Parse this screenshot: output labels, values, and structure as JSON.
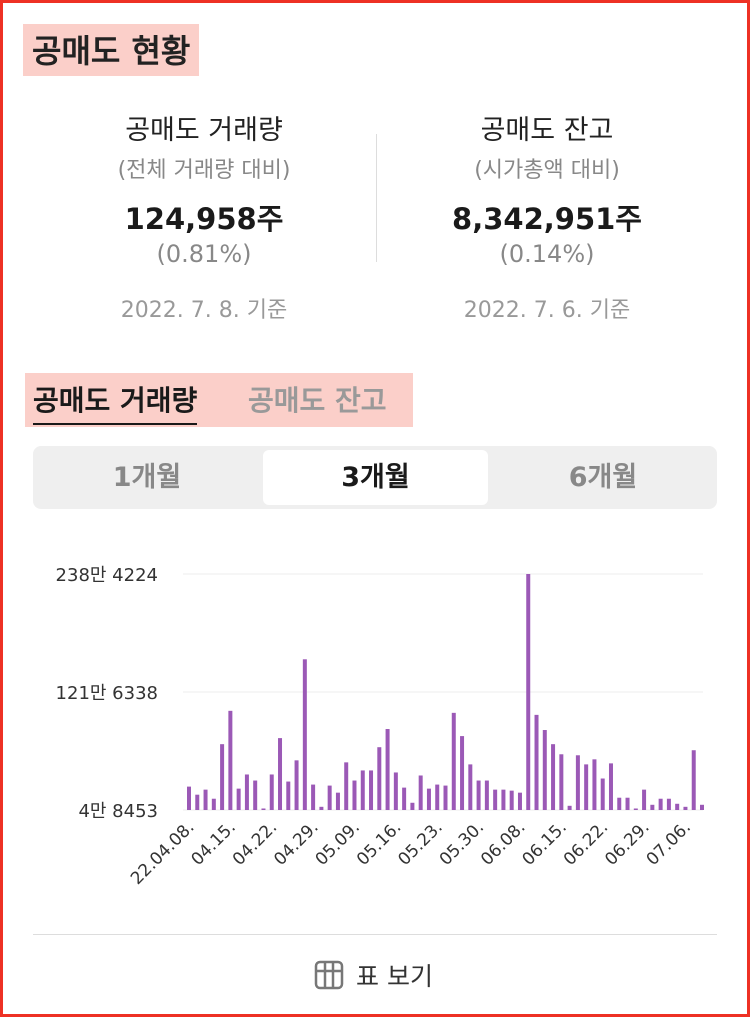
{
  "header": {
    "title": "공매도 현황"
  },
  "stats": {
    "volume": {
      "label": "공매도 거래량",
      "sub": "(전체 거래량 대비)",
      "value": "124,958주",
      "pct": "(0.81%)",
      "date": "2022. 7. 8. 기준"
    },
    "balance": {
      "label": "공매도 잔고",
      "sub": "(시가총액 대비)",
      "value": "8,342,951주",
      "pct": "(0.14%)",
      "date": "2022. 7. 6. 기준"
    }
  },
  "tabs": {
    "active": "공매도 거래량",
    "inactive": "공매도 잔고"
  },
  "periods": [
    "1개월",
    "3개월",
    "6개월"
  ],
  "table_button": {
    "label": "표 보기",
    "icon": "grid-icon"
  },
  "colors": {
    "bar": "#9b59b6",
    "frame": "#ee3124",
    "highlight": "#fbcfc9"
  },
  "chart_data": {
    "type": "bar",
    "y_tick_labels": [
      "238만 4224",
      "121만 6338",
      "4만 8453"
    ],
    "y_ticks": [
      2384224,
      1216338,
      48453
    ],
    "ylim": [
      48453,
      2384224
    ],
    "x_tick_labels": [
      "22.04.08.",
      "04.15.",
      "04.22.",
      "04.29.",
      "05.09.",
      "05.16.",
      "05.23.",
      "05.30.",
      "06.08.",
      "06.15.",
      "06.22.",
      "06.29.",
      "07.06."
    ],
    "x_tick_index": [
      0,
      5,
      10,
      15,
      20,
      25,
      30,
      35,
      40,
      45,
      50,
      55,
      60
    ],
    "values": [
      280000,
      200000,
      250000,
      160000,
      700000,
      1030000,
      260000,
      400000,
      340000,
      48453,
      400000,
      760000,
      330000,
      540000,
      1540000,
      300000,
      80000,
      290000,
      220000,
      520000,
      340000,
      440000,
      440000,
      670000,
      850000,
      420000,
      270000,
      120000,
      390000,
      260000,
      300000,
      290000,
      1010000,
      780000,
      500000,
      340000,
      340000,
      250000,
      250000,
      240000,
      220000,
      2384224,
      990000,
      840000,
      700000,
      600000,
      90000,
      590000,
      500000,
      550000,
      360000,
      510000,
      170000,
      170000,
      48453,
      250000,
      100000,
      160000,
      160000,
      110000,
      80000,
      640000,
      100000
    ]
  }
}
